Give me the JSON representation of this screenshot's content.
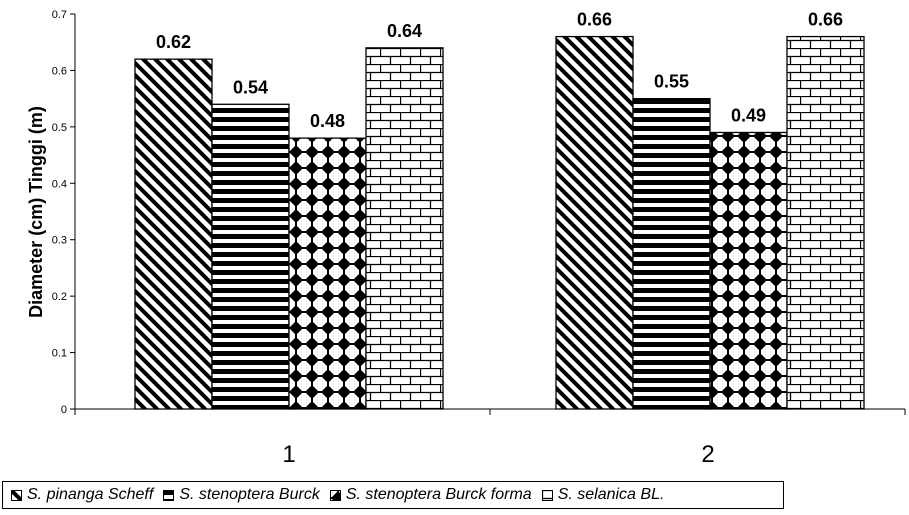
{
  "chart_data": {
    "type": "bar",
    "ylabel": "Diameter (cm) Tinggi (m)",
    "xlabel": "",
    "ylim": [
      0,
      0.7
    ],
    "yticks": [
      "0",
      "0.1",
      "0.2",
      "0.3",
      "0.4",
      "0.5",
      "0.6",
      "0.7"
    ],
    "categories": [
      "1",
      "2"
    ],
    "series": [
      {
        "name": "S. pinanga Scheff",
        "pattern": "diagonal-stripes",
        "values": [
          0.62,
          0.66
        ],
        "labels": [
          "0.62",
          "0.66"
        ]
      },
      {
        "name": "S. stenoptera Burck",
        "pattern": "horizontal-stripes",
        "values": [
          0.54,
          0.55
        ],
        "labels": [
          "0.54",
          "0.55"
        ]
      },
      {
        "name": "S. stenoptera Burck forma",
        "pattern": "dotted-diamonds",
        "values": [
          0.48,
          0.49
        ],
        "labels": [
          "0.48",
          "0.49"
        ]
      },
      {
        "name": "S. selanica BL.",
        "pattern": "brick",
        "values": [
          0.64,
          0.66
        ],
        "labels": [
          "0.64",
          "0.66"
        ]
      }
    ],
    "legend_position": "bottom",
    "grid": false,
    "colors": {
      "bar_stroke": "#000000",
      "background": "#ffffff",
      "axis": "#000000"
    }
  }
}
